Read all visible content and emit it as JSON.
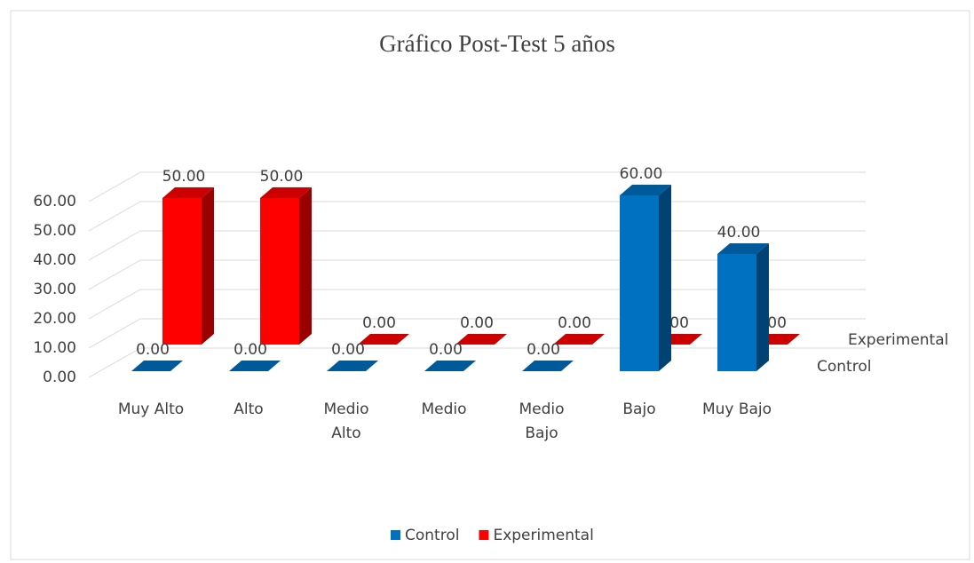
{
  "chart_data": {
    "type": "bar3d",
    "title": "Gráfico Post-Test 5 años",
    "categories": [
      "Muy Alto",
      "Alto",
      "Medio\nAlto",
      "Medio",
      "Medio\nBajo",
      "Bajo",
      "Muy Bajo"
    ],
    "series": [
      {
        "name": "Control",
        "color": "#0070c0",
        "values": [
          0,
          0,
          0,
          0,
          0,
          60,
          40
        ],
        "value_labels": [
          "0.00",
          "0.00",
          "0.00",
          "0.00",
          "0.00",
          "60.00",
          "40.00"
        ]
      },
      {
        "name": "Experimental",
        "color": "#ff0000",
        "values": [
          50,
          50,
          0,
          0,
          0,
          0,
          0
        ],
        "value_labels": [
          "50.00",
          "50.00",
          "0.00",
          "0.00",
          "0.00",
          "0.00",
          "0.00"
        ]
      }
    ],
    "ylim": [
      0,
      60
    ],
    "yticks": [
      {
        "value": 0,
        "label": "0.00"
      },
      {
        "value": 10,
        "label": "10.00"
      },
      {
        "value": 20,
        "label": "20.00"
      },
      {
        "value": 30,
        "label": "30.00"
      },
      {
        "value": 40,
        "label": "40.00"
      },
      {
        "value": 50,
        "label": "50.00"
      },
      {
        "value": 60,
        "label": "60.00"
      }
    ],
    "grid": true,
    "legend": "bottom"
  }
}
